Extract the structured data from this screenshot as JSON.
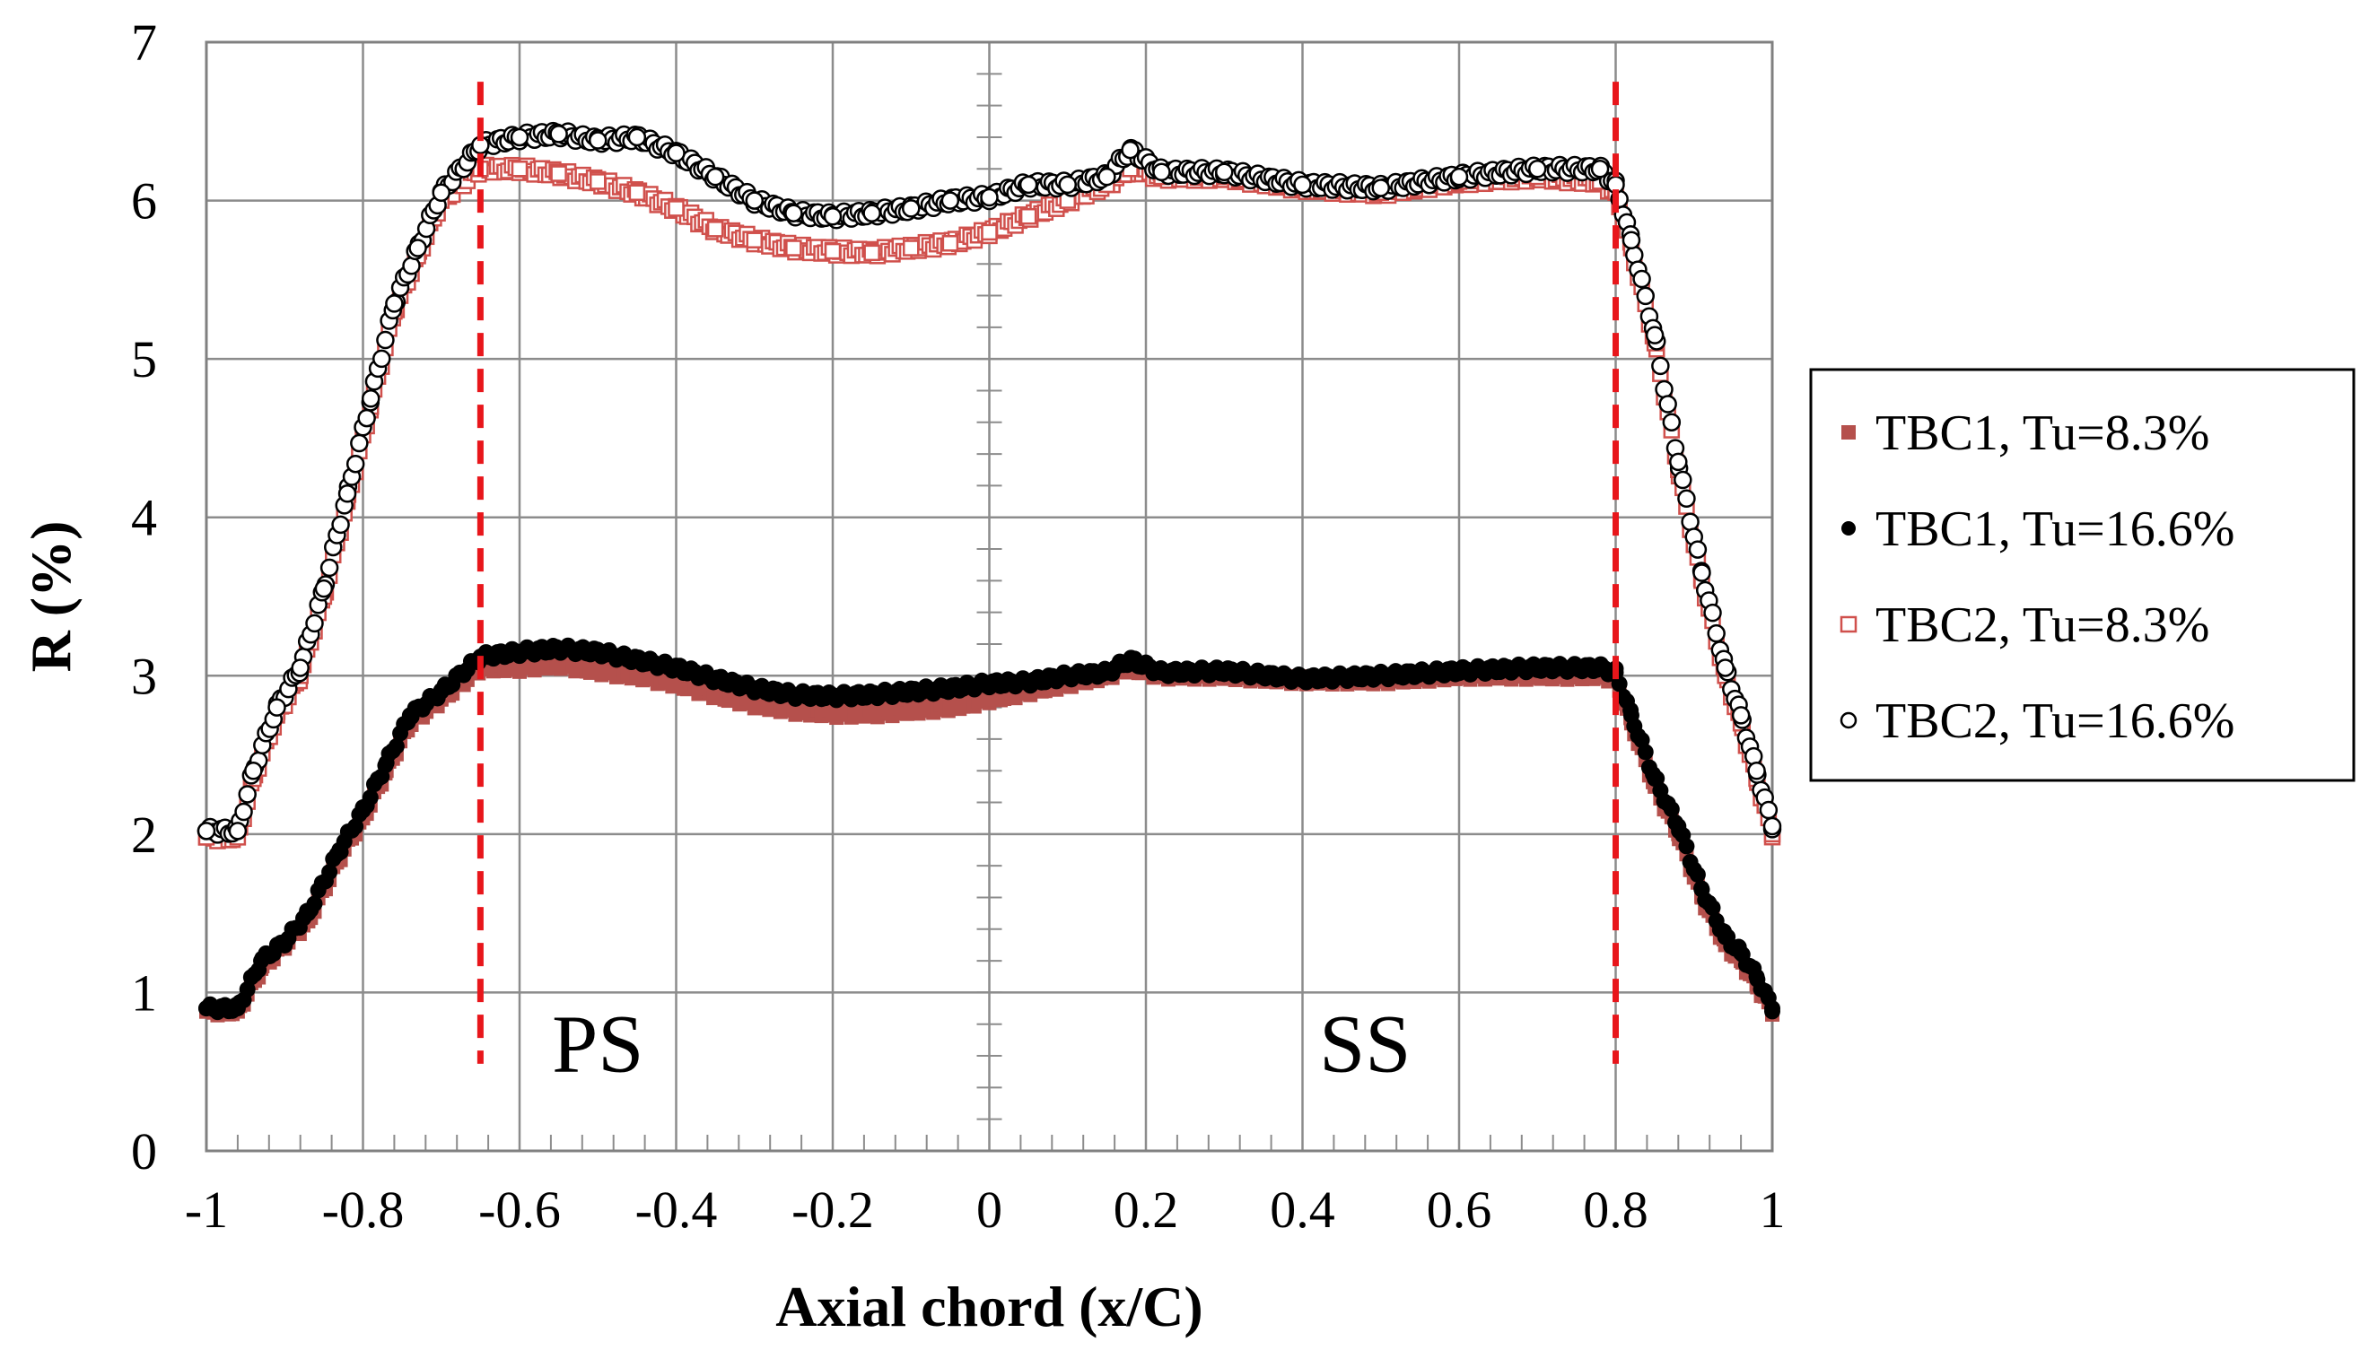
{
  "chart_data": {
    "type": "scatter",
    "title": "",
    "xlabel": "Axial chord (x/C)",
    "ylabel": "R (%)",
    "xlim": [
      -1,
      1
    ],
    "ylim": [
      0,
      7
    ],
    "x_ticks": [
      -1,
      -0.8,
      -0.6,
      -0.4,
      -0.2,
      0,
      0.2,
      0.4,
      0.6,
      0.8,
      1
    ],
    "x_tick_labels": [
      "-1",
      "-0.8",
      "-0.6",
      "-0.4",
      "-0.2",
      "0",
      "0.2",
      "0.4",
      "0.6",
      "0.8",
      "1"
    ],
    "y_ticks": [
      0,
      1,
      2,
      3,
      4,
      5,
      6,
      7
    ],
    "y_tick_labels": [
      "0",
      "1",
      "2",
      "3",
      "4",
      "5",
      "6",
      "7"
    ],
    "grid": true,
    "legend_position": "right",
    "annotations": [
      {
        "text": "PS",
        "x": -0.5,
        "y": 0.5
      },
      {
        "text": "SS",
        "x": 0.48,
        "y": 0.5
      }
    ],
    "reference_lines": [
      {
        "axis": "x",
        "value": -0.65,
        "ymin": 0.55,
        "ymax": 6.75,
        "color": "#e8161b",
        "style": "dashed"
      },
      {
        "axis": "x",
        "value": 0.8,
        "ymin": 0.55,
        "ymax": 6.75,
        "color": "#e8161b",
        "style": "dashed"
      }
    ],
    "series": [
      {
        "name": "TBC1, Tu=8.3%",
        "marker": "square-filled",
        "color": "#b5504c",
        "x": [
          -1,
          -0.96,
          -0.93,
          -0.9,
          -0.87,
          -0.83,
          -0.8,
          -0.77,
          -0.74,
          -0.7,
          -0.65,
          -0.6,
          -0.55,
          -0.5,
          -0.45,
          -0.4,
          -0.35,
          -0.3,
          -0.25,
          -0.2,
          -0.15,
          -0.1,
          -0.05,
          0,
          0.05,
          0.1,
          0.15,
          0.18,
          0.22,
          0.3,
          0.4,
          0.5,
          0.6,
          0.7,
          0.78,
          0.8,
          0.82,
          0.85,
          0.88,
          0.91,
          0.94,
          0.96,
          0.98,
          1
        ],
        "y": [
          0.88,
          0.88,
          1.15,
          1.3,
          1.45,
          1.85,
          2.1,
          2.4,
          2.7,
          2.85,
          3.05,
          3.05,
          3.07,
          3.03,
          3.0,
          2.95,
          2.88,
          2.82,
          2.78,
          2.76,
          2.76,
          2.78,
          2.8,
          2.85,
          2.9,
          2.95,
          3.0,
          3.05,
          3.0,
          3.0,
          2.97,
          2.97,
          3.0,
          3.0,
          3.0,
          2.98,
          2.7,
          2.3,
          2.0,
          1.6,
          1.3,
          1.2,
          1.05,
          0.88
        ]
      },
      {
        "name": "TBC1, Tu=16.6%",
        "marker": "circle-filled",
        "color": "#000000",
        "x": [
          -1,
          -0.96,
          -0.93,
          -0.9,
          -0.87,
          -0.83,
          -0.8,
          -0.77,
          -0.74,
          -0.7,
          -0.65,
          -0.6,
          -0.55,
          -0.5,
          -0.45,
          -0.4,
          -0.35,
          -0.3,
          -0.25,
          -0.2,
          -0.15,
          -0.1,
          -0.05,
          0,
          0.05,
          0.1,
          0.15,
          0.18,
          0.22,
          0.3,
          0.4,
          0.5,
          0.6,
          0.7,
          0.78,
          0.8,
          0.82,
          0.85,
          0.88,
          0.91,
          0.94,
          0.96,
          0.98,
          1
        ],
        "y": [
          0.9,
          0.9,
          1.2,
          1.32,
          1.5,
          1.9,
          2.15,
          2.45,
          2.75,
          2.9,
          3.12,
          3.15,
          3.17,
          3.15,
          3.1,
          3.05,
          2.98,
          2.92,
          2.88,
          2.87,
          2.88,
          2.9,
          2.92,
          2.95,
          2.96,
          3.0,
          3.02,
          3.1,
          3.02,
          3.03,
          2.98,
          3.0,
          3.03,
          3.05,
          3.05,
          3.02,
          2.75,
          2.35,
          2.05,
          1.65,
          1.35,
          1.25,
          1.1,
          0.9
        ]
      },
      {
        "name": "TBC2, Tu=8.3%",
        "marker": "square-open",
        "color": "#d0504c",
        "x": [
          -1,
          -0.96,
          -0.94,
          -0.91,
          -0.88,
          -0.85,
          -0.82,
          -0.79,
          -0.76,
          -0.73,
          -0.7,
          -0.65,
          -0.6,
          -0.55,
          -0.5,
          -0.45,
          -0.4,
          -0.35,
          -0.3,
          -0.25,
          -0.2,
          -0.15,
          -0.1,
          -0.05,
          0,
          0.05,
          0.1,
          0.15,
          0.18,
          0.22,
          0.3,
          0.4,
          0.5,
          0.6,
          0.7,
          0.78,
          0.8,
          0.82,
          0.85,
          0.88,
          0.91,
          0.94,
          0.96,
          0.98,
          1
        ],
        "y": [
          1.98,
          1.98,
          2.35,
          2.75,
          3.0,
          3.5,
          4.1,
          4.7,
          5.3,
          5.65,
          6.0,
          6.2,
          6.2,
          6.17,
          6.12,
          6.05,
          5.95,
          5.82,
          5.75,
          5.7,
          5.68,
          5.67,
          5.7,
          5.73,
          5.8,
          5.9,
          6.0,
          6.1,
          6.2,
          6.15,
          6.15,
          6.08,
          6.05,
          6.12,
          6.15,
          6.12,
          6.05,
          5.7,
          5.1,
          4.3,
          3.6,
          3.0,
          2.7,
          2.35,
          2.0
        ]
      },
      {
        "name": "TBC2, Tu=16.6%",
        "marker": "circle-open",
        "color": "#000000",
        "x": [
          -1,
          -0.96,
          -0.94,
          -0.91,
          -0.88,
          -0.85,
          -0.82,
          -0.79,
          -0.76,
          -0.73,
          -0.7,
          -0.65,
          -0.6,
          -0.55,
          -0.5,
          -0.45,
          -0.4,
          -0.35,
          -0.3,
          -0.25,
          -0.2,
          -0.15,
          -0.1,
          -0.05,
          0,
          0.05,
          0.1,
          0.15,
          0.18,
          0.22,
          0.3,
          0.4,
          0.5,
          0.6,
          0.7,
          0.78,
          0.8,
          0.82,
          0.85,
          0.88,
          0.91,
          0.94,
          0.96,
          0.98,
          1
        ],
        "y": [
          2.02,
          2.02,
          2.4,
          2.8,
          3.05,
          3.55,
          4.15,
          4.75,
          5.35,
          5.7,
          6.05,
          6.35,
          6.4,
          6.42,
          6.38,
          6.4,
          6.3,
          6.15,
          6.0,
          5.92,
          5.9,
          5.92,
          5.95,
          6.0,
          6.02,
          6.1,
          6.1,
          6.15,
          6.32,
          6.18,
          6.18,
          6.1,
          6.08,
          6.15,
          6.2,
          6.2,
          6.1,
          5.75,
          5.15,
          4.35,
          3.65,
          3.05,
          2.75,
          2.4,
          2.05
        ]
      }
    ]
  }
}
